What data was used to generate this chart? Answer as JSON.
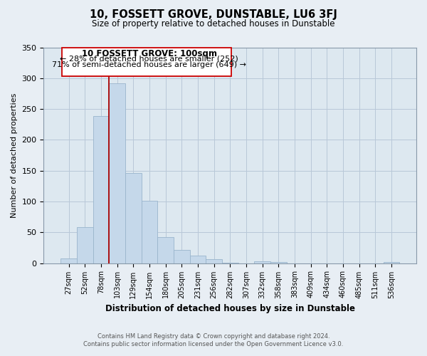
{
  "title": "10, FOSSETT GROVE, DUNSTABLE, LU6 3FJ",
  "subtitle": "Size of property relative to detached houses in Dunstable",
  "xlabel": "Distribution of detached houses by size in Dunstable",
  "ylabel": "Number of detached properties",
  "bar_labels": [
    "27sqm",
    "52sqm",
    "78sqm",
    "103sqm",
    "129sqm",
    "154sqm",
    "180sqm",
    "205sqm",
    "231sqm",
    "256sqm",
    "282sqm",
    "307sqm",
    "332sqm",
    "358sqm",
    "383sqm",
    "409sqm",
    "434sqm",
    "460sqm",
    "485sqm",
    "511sqm",
    "536sqm"
  ],
  "bar_values": [
    8,
    58,
    238,
    292,
    146,
    101,
    42,
    21,
    12,
    6,
    1,
    0,
    3,
    2,
    0,
    0,
    0,
    0,
    0,
    0,
    2
  ],
  "bar_color": "#c5d8ea",
  "bar_edge_color": "#9ab5cc",
  "highlight_line_color": "#aa0000",
  "ylim": [
    0,
    350
  ],
  "yticks": [
    0,
    50,
    100,
    150,
    200,
    250,
    300,
    350
  ],
  "annotation_title": "10 FOSSETT GROVE: 100sqm",
  "annotation_line1": "← 28% of detached houses are smaller (252)",
  "annotation_line2": "71% of semi-detached houses are larger (649) →",
  "annotation_box_facecolor": "#ffffff",
  "annotation_border_color": "#cc0000",
  "footer_line1": "Contains HM Land Registry data © Crown copyright and database right 2024.",
  "footer_line2": "Contains public sector information licensed under the Open Government Licence v3.0.",
  "bg_color": "#e8eef4",
  "plot_bg_color": "#dde8f0",
  "grid_color": "#b8c8d8"
}
